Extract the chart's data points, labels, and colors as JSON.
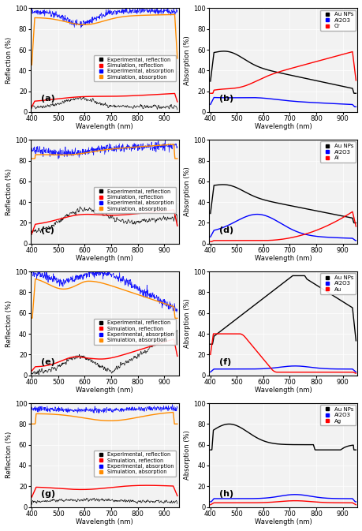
{
  "wavelength_range": [
    400,
    950
  ],
  "panel_labels": [
    "(a)",
    "(b)",
    "(c)",
    "(d)",
    "(e)",
    "(f)",
    "(g)",
    "(h)"
  ],
  "left_ylabel": "Reflection (%)",
  "right_ylabel": "Absorption (%)",
  "xlabel": "Wavelength (nm)",
  "xticks": [
    400,
    500,
    600,
    700,
    800,
    900
  ],
  "yticks": [
    0,
    20,
    40,
    60,
    80,
    100
  ],
  "legend_left": [
    "Experimental, reflection",
    "Simulation, reflection",
    "Experimental, absorption",
    "Simulation, absorption"
  ],
  "legend_left_colors": [
    "black",
    "red",
    "blue",
    "darkorange"
  ],
  "legend_right_b": [
    "Au NPs",
    "Al2O3",
    "Cr"
  ],
  "legend_right_d": [
    "Au NPs",
    "Al2O3",
    "Al"
  ],
  "legend_right_f": [
    "Au NPs",
    "Al2O3",
    "Au"
  ],
  "legend_right_h": [
    "Au NPs",
    "Al2O3",
    "Ag"
  ],
  "legend_right_colors": [
    "black",
    "blue",
    "red"
  ],
  "bg_color": "#f2f2f2",
  "grid_color": "white",
  "tick_fontsize": 6,
  "label_fontsize": 6,
  "legend_fontsize": 4.8
}
